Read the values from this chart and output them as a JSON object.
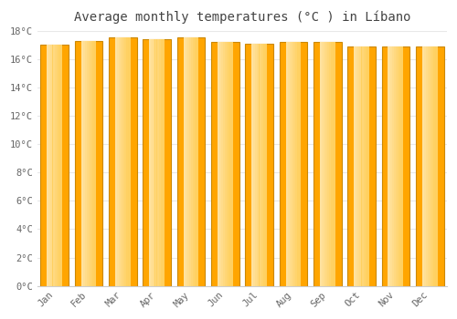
{
  "title": "Average monthly temperatures (°C ) in Líbano",
  "months": [
    "Jan",
    "Feb",
    "Mar",
    "Apr",
    "May",
    "Jun",
    "Jul",
    "Aug",
    "Sep",
    "Oct",
    "Nov",
    "Dec"
  ],
  "values": [
    17.0,
    17.3,
    17.5,
    17.4,
    17.5,
    17.2,
    17.1,
    17.2,
    17.2,
    16.9,
    16.9,
    16.9
  ],
  "bar_color_main": "#FFA500",
  "bar_color_light": "#FFD060",
  "bar_color_edge": "#CC8800",
  "ylim": [
    0,
    18
  ],
  "yticks": [
    0,
    2,
    4,
    6,
    8,
    10,
    12,
    14,
    16,
    18
  ],
  "ytick_labels": [
    "0°C",
    "2°C",
    "4°C",
    "6°C",
    "8°C",
    "10°C",
    "12°C",
    "14°C",
    "16°C",
    "18°C"
  ],
  "background_color": "#ffffff",
  "plot_bg_color": "#ffffff",
  "grid_color": "#e8e8e8",
  "title_fontsize": 10,
  "tick_fontsize": 7.5,
  "title_color": "#444444",
  "tick_color": "#666666",
  "bar_width": 0.82
}
